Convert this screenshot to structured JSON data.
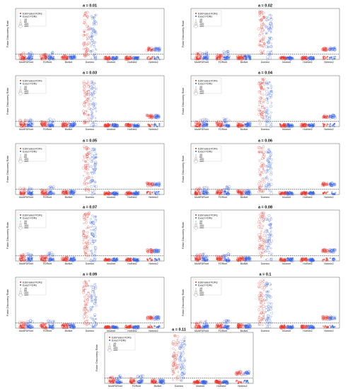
{
  "figure": {
    "panel_titles": [
      "a = 0.01",
      "a = 0.02",
      "a = 0.03",
      "a = 0.04",
      "a = 0.05",
      "a = 0.06",
      "a = 0.07",
      "a = 0.08",
      "a = 0.09",
      "a = 0.1",
      "a = 0.11"
    ],
    "ylabel": "False Discovery Rate",
    "colors": {
      "estimated": "#e8342a",
      "exact": "#3560e6",
      "threshold_line": "#000000"
    }
  },
  "chart_data": {
    "type": "scatter",
    "subtype": "jittered strip plot with size-coded markers",
    "categories": [
      "MultiFDRnet",
      "FDRnet",
      "BioNet",
      "Domino",
      "hhotnet",
      "HotNet2",
      "Netmix2"
    ],
    "ylim": [
      0,
      1
    ],
    "legend": {
      "placement": "top-left",
      "series": [
        "Estimated FDRs",
        "Exact FDRs"
      ],
      "sizes": [
        "10",
        "50",
        "100",
        "100"
      ]
    },
    "panels": [
      {
        "title": "a = 0.01",
        "alpha": 0.01,
        "series": [
          {
            "name": "Estimated FDRs",
            "median": [
              0.05,
              0.05,
              0.04,
              0.5,
              0.02,
              0.02,
              0.2
            ],
            "spread": [
              0.08,
              0.05,
              0.04,
              0.45,
              0.02,
              0.03,
              0.03
            ]
          },
          {
            "name": "Exact FDRs",
            "median": [
              0.05,
              0.06,
              0.04,
              0.45,
              0.02,
              0.02,
              0.2
            ],
            "spread": [
              0.1,
              0.1,
              0.04,
              0.45,
              0.02,
              0.02,
              0.03
            ]
          }
        ]
      },
      {
        "title": "a = 0.02",
        "alpha": 0.02,
        "series": [
          {
            "name": "Estimated FDRs",
            "median": [
              0.05,
              0.05,
              0.04,
              0.5,
              0.02,
              0.02,
              0.2
            ],
            "spread": [
              0.08,
              0.05,
              0.04,
              0.45,
              0.02,
              0.03,
              0.03
            ]
          },
          {
            "name": "Exact FDRs",
            "median": [
              0.05,
              0.06,
              0.04,
              0.45,
              0.02,
              0.02,
              0.2
            ],
            "spread": [
              0.1,
              0.1,
              0.04,
              0.45,
              0.02,
              0.02,
              0.03
            ]
          }
        ]
      },
      {
        "title": "a = 0.03",
        "alpha": 0.03,
        "series": [
          {
            "name": "Estimated FDRs",
            "median": [
              0.05,
              0.05,
              0.04,
              0.5,
              0.02,
              0.02,
              0.2
            ],
            "spread": [
              0.08,
              0.05,
              0.04,
              0.45,
              0.02,
              0.03,
              0.03
            ]
          },
          {
            "name": "Exact FDRs",
            "median": [
              0.05,
              0.06,
              0.04,
              0.45,
              0.02,
              0.02,
              0.2
            ],
            "spread": [
              0.1,
              0.1,
              0.04,
              0.45,
              0.02,
              0.02,
              0.03
            ]
          }
        ]
      },
      {
        "title": "a = 0.04",
        "alpha": 0.04,
        "series": [
          {
            "name": "Estimated FDRs",
            "median": [
              0.05,
              0.05,
              0.04,
              0.5,
              0.02,
              0.02,
              0.2
            ],
            "spread": [
              0.08,
              0.05,
              0.04,
              0.45,
              0.02,
              0.03,
              0.03
            ]
          },
          {
            "name": "Exact FDRs",
            "median": [
              0.05,
              0.06,
              0.04,
              0.45,
              0.02,
              0.02,
              0.2
            ],
            "spread": [
              0.1,
              0.1,
              0.04,
              0.45,
              0.02,
              0.02,
              0.03
            ]
          }
        ]
      },
      {
        "title": "a = 0.05",
        "alpha": 0.05,
        "series": [
          {
            "name": "Estimated FDRs",
            "median": [
              0.05,
              0.05,
              0.04,
              0.5,
              0.02,
              0.02,
              0.2
            ],
            "spread": [
              0.08,
              0.05,
              0.04,
              0.45,
              0.02,
              0.03,
              0.03
            ]
          },
          {
            "name": "Exact FDRs",
            "median": [
              0.05,
              0.06,
              0.04,
              0.45,
              0.02,
              0.02,
              0.2
            ],
            "spread": [
              0.1,
              0.1,
              0.04,
              0.45,
              0.02,
              0.02,
              0.03
            ]
          }
        ]
      },
      {
        "title": "a = 0.06",
        "alpha": 0.06,
        "series": [
          {
            "name": "Estimated FDRs",
            "median": [
              0.05,
              0.05,
              0.04,
              0.5,
              0.02,
              0.02,
              0.2
            ],
            "spread": [
              0.08,
              0.05,
              0.04,
              0.45,
              0.02,
              0.03,
              0.03
            ]
          },
          {
            "name": "Exact FDRs",
            "median": [
              0.05,
              0.06,
              0.04,
              0.45,
              0.02,
              0.02,
              0.2
            ],
            "spread": [
              0.1,
              0.1,
              0.04,
              0.45,
              0.02,
              0.02,
              0.03
            ]
          }
        ]
      },
      {
        "title": "a = 0.07",
        "alpha": 0.07,
        "series": [
          {
            "name": "Estimated FDRs",
            "median": [
              0.05,
              0.05,
              0.04,
              0.5,
              0.02,
              0.02,
              0.2
            ],
            "spread": [
              0.08,
              0.05,
              0.04,
              0.45,
              0.02,
              0.03,
              0.03
            ]
          },
          {
            "name": "Exact FDRs",
            "median": [
              0.05,
              0.06,
              0.04,
              0.45,
              0.02,
              0.02,
              0.2
            ],
            "spread": [
              0.1,
              0.1,
              0.04,
              0.45,
              0.02,
              0.02,
              0.03
            ]
          }
        ]
      },
      {
        "title": "a = 0.08",
        "alpha": 0.08,
        "series": [
          {
            "name": "Estimated FDRs",
            "median": [
              0.05,
              0.05,
              0.04,
              0.5,
              0.02,
              0.02,
              0.2
            ],
            "spread": [
              0.08,
              0.05,
              0.04,
              0.45,
              0.02,
              0.03,
              0.03
            ]
          },
          {
            "name": "Exact FDRs",
            "median": [
              0.05,
              0.06,
              0.04,
              0.45,
              0.02,
              0.02,
              0.2
            ],
            "spread": [
              0.1,
              0.1,
              0.04,
              0.45,
              0.02,
              0.02,
              0.03
            ]
          }
        ]
      },
      {
        "title": "a = 0.09",
        "alpha": 0.09,
        "series": [
          {
            "name": "Estimated FDRs",
            "median": [
              0.05,
              0.05,
              0.04,
              0.5,
              0.02,
              0.02,
              0.2
            ],
            "spread": [
              0.08,
              0.05,
              0.04,
              0.45,
              0.02,
              0.03,
              0.03
            ]
          },
          {
            "name": "Exact FDRs",
            "median": [
              0.05,
              0.06,
              0.04,
              0.45,
              0.02,
              0.02,
              0.2
            ],
            "spread": [
              0.1,
              0.1,
              0.04,
              0.45,
              0.02,
              0.02,
              0.03
            ]
          }
        ]
      },
      {
        "title": "a = 0.1",
        "alpha": 0.1,
        "series": [
          {
            "name": "Estimated FDRs",
            "median": [
              0.05,
              0.05,
              0.04,
              0.5,
              0.02,
              0.02,
              0.2
            ],
            "spread": [
              0.08,
              0.05,
              0.04,
              0.45,
              0.02,
              0.03,
              0.03
            ]
          },
          {
            "name": "Exact FDRs",
            "median": [
              0.05,
              0.06,
              0.04,
              0.45,
              0.02,
              0.02,
              0.2
            ],
            "spread": [
              0.1,
              0.1,
              0.04,
              0.45,
              0.02,
              0.02,
              0.03
            ]
          }
        ]
      },
      {
        "title": "a = 0.11",
        "alpha": 0.11,
        "series": [
          {
            "name": "Estimated FDRs",
            "median": [
              0.05,
              0.05,
              0.04,
              0.5,
              0.02,
              0.02,
              0.2
            ],
            "spread": [
              0.08,
              0.05,
              0.04,
              0.45,
              0.02,
              0.03,
              0.03
            ]
          },
          {
            "name": "Exact FDRs",
            "median": [
              0.05,
              0.06,
              0.04,
              0.45,
              0.02,
              0.02,
              0.2
            ],
            "spread": [
              0.1,
              0.1,
              0.04,
              0.45,
              0.02,
              0.02,
              0.03
            ]
          }
        ]
      }
    ]
  }
}
